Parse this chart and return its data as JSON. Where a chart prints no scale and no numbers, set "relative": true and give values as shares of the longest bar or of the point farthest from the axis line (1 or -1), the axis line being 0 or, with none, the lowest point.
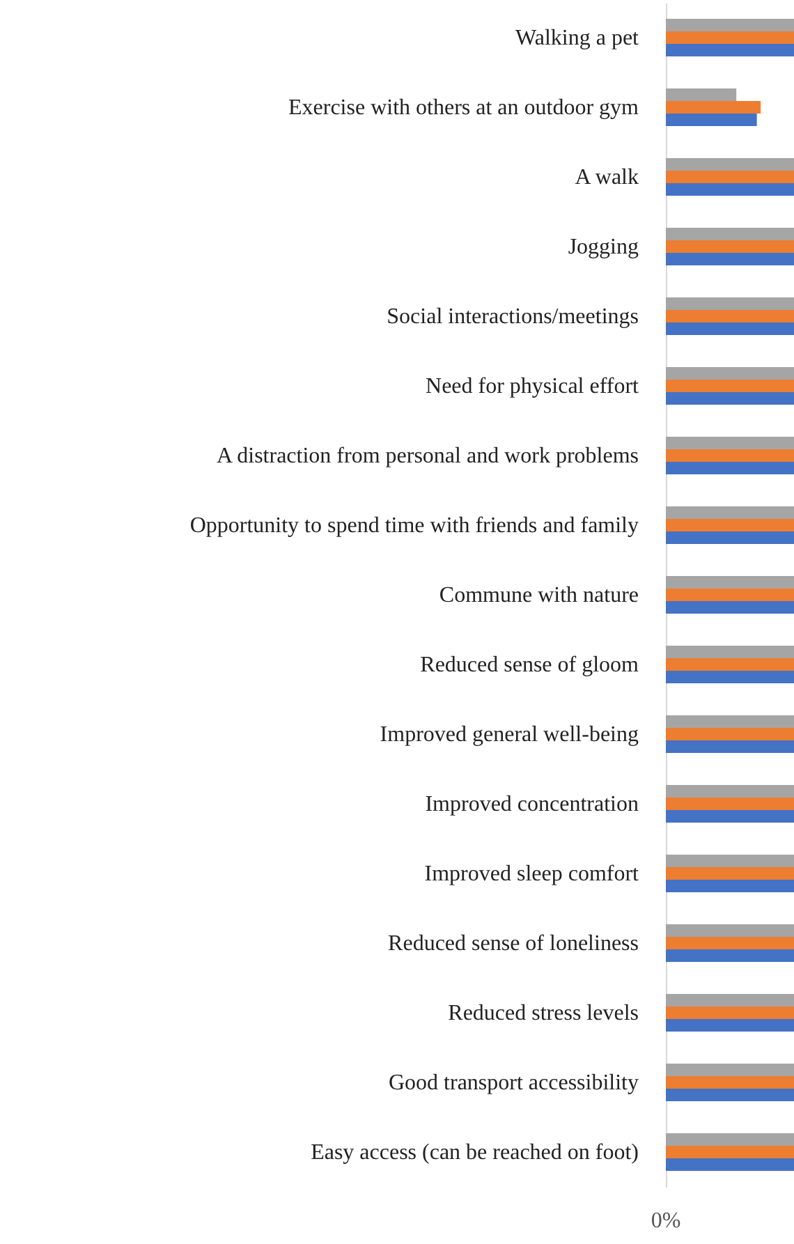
{
  "chart_data": {
    "type": "bar",
    "orientation": "horizontal",
    "relative": true,
    "categories": [
      "Walking a pet",
      "Exercise with others at an outdoor gym",
      "A walk",
      "Jogging",
      "Social interactions/meetings",
      "Need for physical effort",
      "A distraction from personal and work problems",
      "Opportunity to spend time with friends and family",
      "Commune with nature",
      "Reduced sense of gloom",
      "Improved general well-being",
      "Improved concentration",
      "Improved sleep comfort",
      "Reduced sense of loneliness",
      "Reduced stress levels",
      "Good transport accessibility",
      "Easy access (can be reached on foot)"
    ],
    "series": [
      {
        "color": "#a5a5a5",
        "values": [
          1,
          0.55,
          1,
          1,
          1,
          1,
          1,
          1,
          1,
          1,
          1,
          1,
          1,
          1,
          1,
          1,
          1
        ]
      },
      {
        "color": "#ed7d31",
        "values": [
          1,
          0.74,
          1,
          1,
          1,
          1,
          1,
          1,
          1,
          1,
          1,
          1,
          1,
          1,
          1,
          1,
          1
        ]
      },
      {
        "color": "#4472c4",
        "values": [
          1,
          0.71,
          1,
          1,
          1,
          1,
          1,
          1,
          1,
          1,
          1,
          1,
          1,
          1,
          1,
          1,
          1
        ]
      }
    ],
    "annotations": [
      "0%"
    ]
  }
}
